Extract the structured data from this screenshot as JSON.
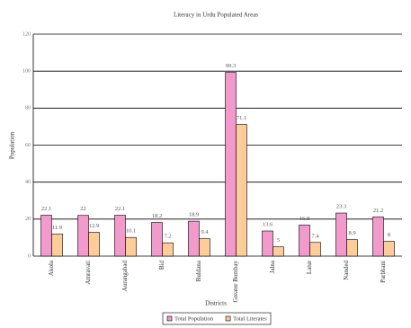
{
  "chart_data": {
    "type": "bar",
    "title": "Literacy in Urdu Populated Areas",
    "x_label": "Districts",
    "y_label": "Population",
    "categories": [
      "Akola",
      "Amravati",
      "Aurangabad",
      "Bid",
      "Buldana",
      "Greater Bombay",
      "Jalna",
      "Latur",
      "Nanded",
      "Parbhani"
    ],
    "series": [
      {
        "name": "Total Population",
        "color": "#f29acb",
        "values": [
          22.1,
          22,
          22.1,
          18.2,
          18.9,
          99.3,
          13.6,
          16.8,
          23.3,
          21.2
        ]
      },
      {
        "name": "Total Literates",
        "color": "#fdcc99",
        "values": [
          11.9,
          12.9,
          10.1,
          7.2,
          9.4,
          71.1,
          5,
          7.4,
          8.9,
          8
        ]
      }
    ],
    "ylim": [
      0,
      120
    ],
    "yticks": [
      0,
      20,
      40,
      60,
      80,
      100,
      120
    ],
    "grid": true
  }
}
